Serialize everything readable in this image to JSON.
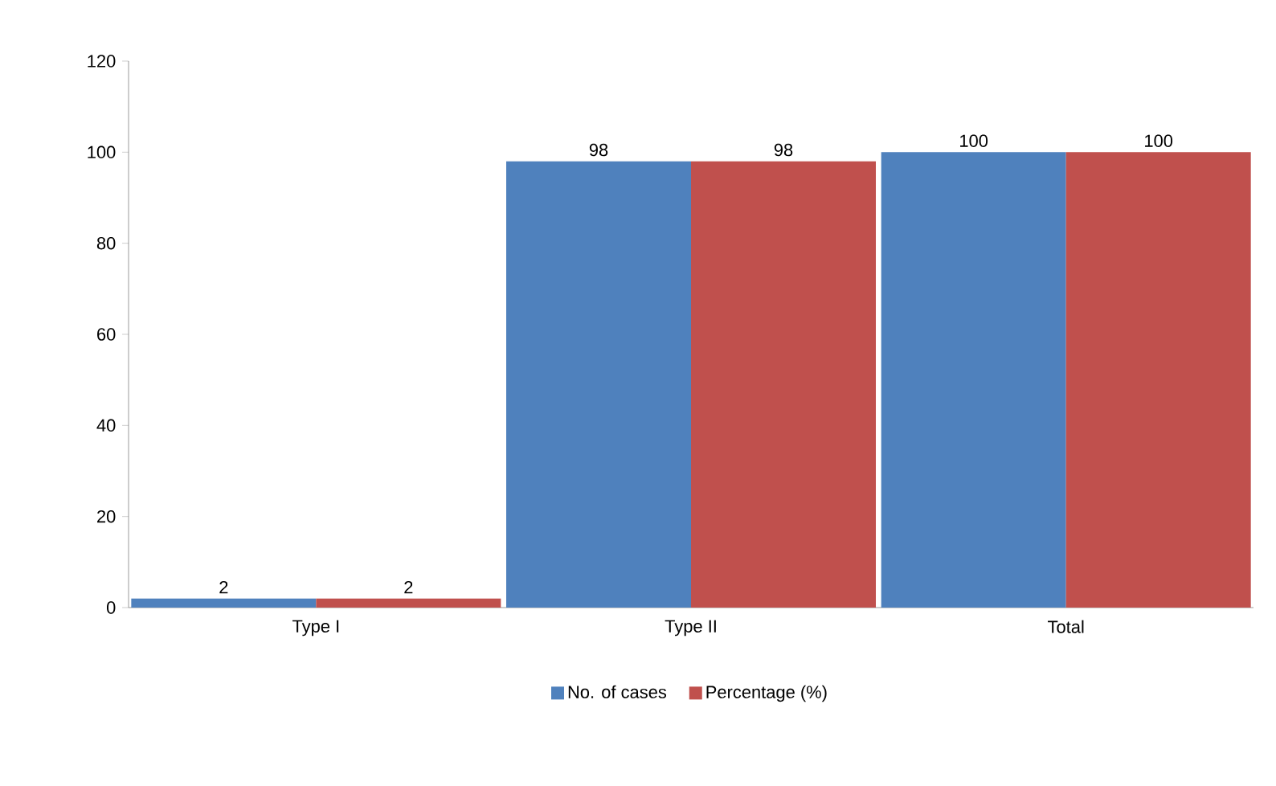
{
  "chart_data": {
    "type": "bar",
    "categories": [
      "Type I",
      "Type II",
      "Total"
    ],
    "series": [
      {
        "name": "No. of cases",
        "color": "#4f81bd",
        "values": [
          2,
          98,
          100
        ]
      },
      {
        "name": "Percentage (%)",
        "color": "#c0504d",
        "values": [
          2,
          98,
          100
        ]
      }
    ],
    "ylim": [
      0,
      120
    ],
    "yticks": [
      0,
      20,
      40,
      60,
      80,
      100,
      120
    ],
    "data_labels": true,
    "legend": "bottom",
    "grid": false
  }
}
